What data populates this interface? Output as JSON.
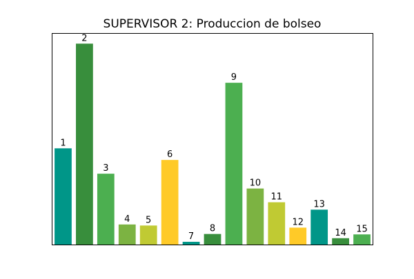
{
  "chart_data": {
    "type": "bar",
    "title": "SUPERVISOR 2: Produccion de bolseo",
    "xlabel": "",
    "ylabel": "",
    "ylim": [
      0,
      100
    ],
    "grid": false,
    "axis_ticks_visible": false,
    "categories": [
      "1",
      "2",
      "3",
      "4",
      "5",
      "6",
      "7",
      "8",
      "9",
      "10",
      "11",
      "12",
      "13",
      "14",
      "15"
    ],
    "values": [
      45.5,
      95.0,
      33.5,
      9.5,
      9.0,
      40.0,
      1.3,
      5.0,
      76.5,
      26.5,
      20.0,
      8.0,
      16.5,
      3.0,
      4.8
    ],
    "bar_labels": [
      "1",
      "2",
      "3",
      "4",
      "5",
      "6",
      "7",
      "8",
      "9",
      "10",
      "11",
      "12",
      "13",
      "14",
      "15"
    ],
    "colors": [
      "#009688",
      "#388e3c",
      "#4caf50",
      "#7cb342",
      "#c0ca33",
      "#ffca28",
      "#009688",
      "#388e3c",
      "#4caf50",
      "#7cb342",
      "#c0ca33",
      "#ffca28",
      "#009688",
      "#388e3c",
      "#4caf50"
    ]
  }
}
